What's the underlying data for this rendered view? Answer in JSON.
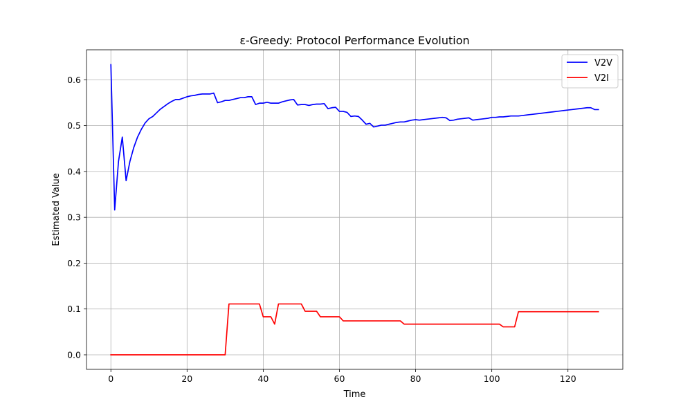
{
  "chart_data": {
    "type": "line",
    "title": "ε-Greedy: Protocol Performance Evolution",
    "xlabel": "Time",
    "ylabel": "Estimated Value",
    "xlim": [
      -6.4,
      134.4
    ],
    "ylim": [
      -0.0317,
      0.6654
    ],
    "xticks": [
      0,
      20,
      40,
      60,
      80,
      100,
      120
    ],
    "yticks": [
      0.0,
      0.1,
      0.2,
      0.3,
      0.4,
      0.5,
      0.6
    ],
    "xtick_labels": [
      "0",
      "20",
      "40",
      "60",
      "80",
      "100",
      "120"
    ],
    "ytick_labels": [
      "0.0",
      "0.1",
      "0.2",
      "0.3",
      "0.4",
      "0.5",
      "0.6"
    ],
    "grid": true,
    "legend_position": "top-right",
    "series": [
      {
        "name": "V2V",
        "color": "#0000ff",
        "x": [
          0,
          1,
          2,
          3,
          4,
          5,
          6,
          7,
          8,
          9,
          10,
          11,
          12,
          13,
          14,
          15,
          16,
          17,
          18,
          19,
          20,
          21,
          22,
          23,
          24,
          25,
          26,
          27,
          28,
          29,
          30,
          31,
          32,
          33,
          34,
          35,
          36,
          37,
          38,
          39,
          40,
          41,
          42,
          43,
          44,
          45,
          46,
          47,
          48,
          49,
          50,
          51,
          52,
          53,
          54,
          55,
          56,
          57,
          58,
          59,
          60,
          61,
          62,
          63,
          64,
          65,
          66,
          67,
          68,
          69,
          70,
          71,
          72,
          73,
          74,
          75,
          76,
          77,
          78,
          79,
          80,
          81,
          82,
          83,
          84,
          85,
          86,
          87,
          88,
          89,
          90,
          91,
          92,
          93,
          94,
          95,
          96,
          97,
          98,
          99,
          100,
          101,
          102,
          103,
          104,
          105,
          106,
          107,
          108,
          109,
          110,
          111,
          112,
          113,
          114,
          115,
          116,
          117,
          118,
          119,
          120,
          121,
          122,
          123,
          124,
          125,
          126,
          127,
          128
        ],
        "values": [
          0.633,
          0.316,
          0.422,
          0.475,
          0.38,
          0.422,
          0.452,
          0.475,
          0.492,
          0.506,
          0.515,
          0.52,
          0.528,
          0.536,
          0.542,
          0.548,
          0.553,
          0.557,
          0.557,
          0.56,
          0.563,
          0.565,
          0.566,
          0.568,
          0.569,
          0.569,
          0.569,
          0.571,
          0.55,
          0.552,
          0.555,
          0.555,
          0.557,
          0.559,
          0.561,
          0.561,
          0.563,
          0.563,
          0.546,
          0.549,
          0.549,
          0.551,
          0.549,
          0.549,
          0.549,
          0.552,
          0.554,
          0.556,
          0.557,
          0.545,
          0.546,
          0.546,
          0.544,
          0.546,
          0.547,
          0.547,
          0.548,
          0.537,
          0.539,
          0.54,
          0.531,
          0.531,
          0.529,
          0.52,
          0.521,
          0.52,
          0.512,
          0.503,
          0.505,
          0.497,
          0.499,
          0.501,
          0.501,
          0.503,
          0.505,
          0.507,
          0.508,
          0.508,
          0.51,
          0.512,
          0.513,
          0.512,
          0.513,
          0.514,
          0.515,
          0.516,
          0.517,
          0.518,
          0.517,
          0.511,
          0.512,
          0.514,
          0.515,
          0.516,
          0.517,
          0.512,
          0.513,
          0.514,
          0.515,
          0.516,
          0.518,
          0.518,
          0.519,
          0.519,
          0.52,
          0.521,
          0.521,
          0.521,
          0.522,
          0.523,
          0.524,
          0.525,
          0.526,
          0.527,
          0.528,
          0.529,
          0.53,
          0.531,
          0.532,
          0.533,
          0.534,
          0.535,
          0.536,
          0.537,
          0.538,
          0.539,
          0.539,
          0.535,
          0.535
        ]
      },
      {
        "name": "V2I",
        "color": "#ff0000",
        "x": [
          0,
          30,
          31,
          39,
          40,
          42,
          43,
          44,
          50,
          51,
          54,
          55,
          60,
          61,
          76,
          77,
          102,
          103,
          106,
          107,
          128
        ],
        "values": [
          0.0,
          0.0,
          0.111,
          0.111,
          0.083,
          0.083,
          0.067,
          0.111,
          0.111,
          0.095,
          0.095,
          0.083,
          0.083,
          0.074,
          0.074,
          0.067,
          0.067,
          0.061,
          0.061,
          0.094,
          0.094
        ]
      }
    ]
  }
}
